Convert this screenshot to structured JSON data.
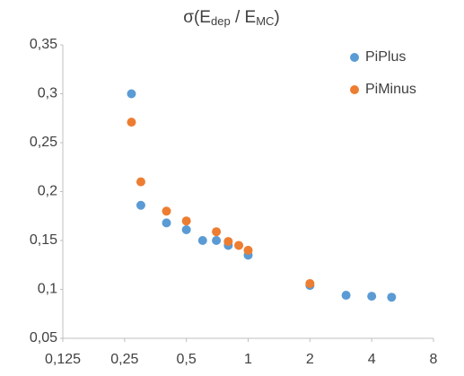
{
  "chart_data": {
    "type": "scatter",
    "title_parts": [
      "σ(E",
      "dep",
      " / E",
      "MC",
      ")"
    ],
    "xscale": "log2",
    "xlim": [
      0.125,
      8
    ],
    "xticks": [
      {
        "value": 0.125,
        "label": "0,125"
      },
      {
        "value": 0.25,
        "label": "0,25"
      },
      {
        "value": 0.5,
        "label": "0,5"
      },
      1,
      2,
      4,
      8
    ],
    "ylim": [
      0.05,
      0.35
    ],
    "yticks": [
      {
        "value": 0.05,
        "label": "0,05"
      },
      {
        "value": 0.1,
        "label": "0,1"
      },
      {
        "value": 0.15,
        "label": "0,15"
      },
      {
        "value": 0.2,
        "label": "0,2"
      },
      {
        "value": 0.25,
        "label": "0,25"
      },
      {
        "value": 0.3,
        "label": "0,3"
      },
      {
        "value": 0.35,
        "label": "0,35"
      }
    ],
    "grid": false,
    "legend": "top-right",
    "series": [
      {
        "name": "PiPlus",
        "color": "#5b9bd5",
        "x": [
          0.27,
          0.3,
          0.4,
          0.5,
          0.6,
          0.7,
          0.8,
          1,
          2,
          3,
          4,
          5
        ],
        "values": [
          0.3,
          0.186,
          0.168,
          0.161,
          0.15,
          0.15,
          0.145,
          0.135,
          0.104,
          0.094,
          0.093,
          0.092
        ]
      },
      {
        "name": "PiMinus",
        "color": "#ed7d31",
        "x": [
          0.27,
          0.3,
          0.4,
          0.5,
          0.7,
          0.8,
          0.9,
          1,
          2
        ],
        "values": [
          0.271,
          0.21,
          0.18,
          0.17,
          0.159,
          0.149,
          0.145,
          0.14,
          0.106
        ]
      }
    ]
  }
}
